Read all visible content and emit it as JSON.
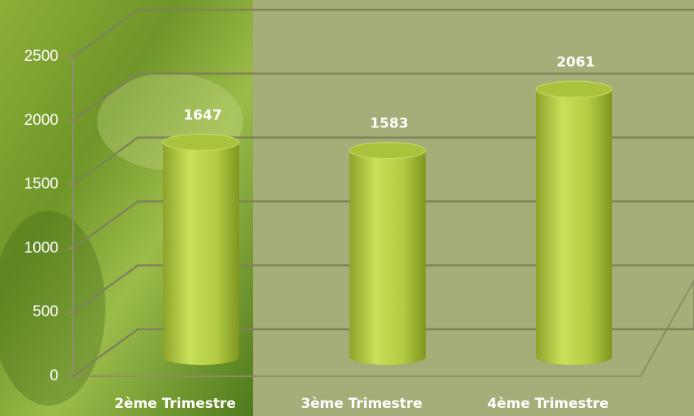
{
  "chart_data": {
    "type": "bar",
    "categories": [
      "2ème Trimestre",
      "3ème Trimestre",
      "4ème Trimestre"
    ],
    "values": [
      1647,
      1583,
      2061
    ],
    "color": "#a9c43c",
    "ylim": [
      0,
      2500
    ],
    "yticks": [
      0,
      500,
      1000,
      1500,
      2000,
      2500
    ],
    "grid": true
  }
}
